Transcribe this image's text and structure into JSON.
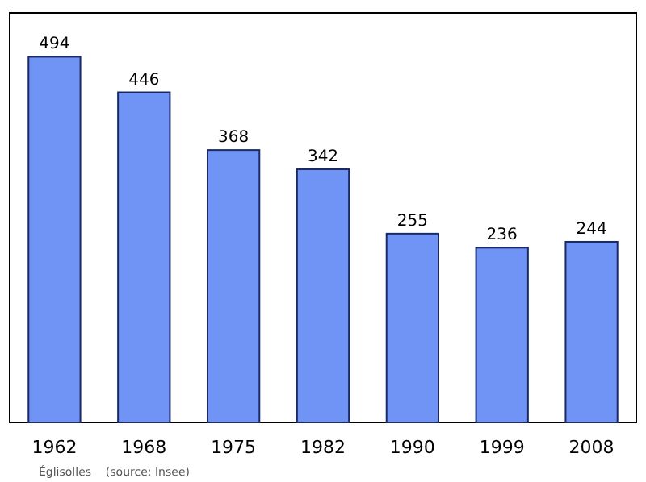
{
  "chart_data": {
    "type": "bar",
    "categories": [
      "1962",
      "1968",
      "1975",
      "1982",
      "1990",
      "1999",
      "2008"
    ],
    "values": [
      494,
      446,
      368,
      342,
      255,
      236,
      244
    ],
    "color": "#7094f5",
    "data_labels": true,
    "annotations": [
      "Églisolles    (source: Insee)"
    ]
  }
}
